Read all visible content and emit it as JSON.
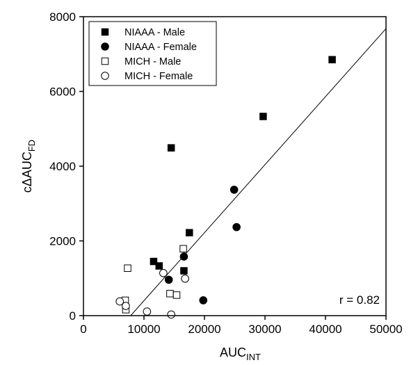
{
  "chart_data": {
    "type": "scatter",
    "xlabel": "AUC",
    "xlabel_sub": "INT",
    "ylabel": "cΔAUC",
    "ylabel_sub": "FD",
    "xlim": [
      0,
      50000
    ],
    "ylim": [
      0,
      8000
    ],
    "xticks": [
      0,
      10000,
      20000,
      30000,
      40000,
      50000
    ],
    "yticks": [
      0,
      2000,
      4000,
      6000,
      8000
    ],
    "legend_position": "top-left",
    "annotation": "r = 0.82",
    "series": [
      {
        "name": "NIAAA - Male",
        "marker": "filled-square",
        "points": [
          {
            "x": 11600,
            "y": 1450
          },
          {
            "x": 12500,
            "y": 1330
          },
          {
            "x": 14500,
            "y": 4490
          },
          {
            "x": 16600,
            "y": 1200
          },
          {
            "x": 17500,
            "y": 2220
          },
          {
            "x": 29700,
            "y": 5330
          },
          {
            "x": 41100,
            "y": 6850
          }
        ]
      },
      {
        "name": "NIAAA - Female",
        "marker": "filled-circle",
        "points": [
          {
            "x": 14100,
            "y": 960
          },
          {
            "x": 16600,
            "y": 1580
          },
          {
            "x": 19800,
            "y": 410
          },
          {
            "x": 24900,
            "y": 3370
          },
          {
            "x": 25300,
            "y": 2370
          }
        ]
      },
      {
        "name": "MICH - Male",
        "marker": "open-square",
        "points": [
          {
            "x": 6900,
            "y": 410
          },
          {
            "x": 7000,
            "y": 160
          },
          {
            "x": 7300,
            "y": 1270
          },
          {
            "x": 14300,
            "y": 590
          },
          {
            "x": 15400,
            "y": 550
          },
          {
            "x": 16500,
            "y": 1790
          }
        ]
      },
      {
        "name": "MICH - Female",
        "marker": "open-circle",
        "points": [
          {
            "x": 6000,
            "y": 380
          },
          {
            "x": 7000,
            "y": 260
          },
          {
            "x": 10500,
            "y": 110
          },
          {
            "x": 13200,
            "y": 1140
          },
          {
            "x": 14500,
            "y": 30
          },
          {
            "x": 16800,
            "y": 990
          }
        ]
      }
    ],
    "fit_line": {
      "x": [
        7800,
        50000
      ],
      "y": [
        0,
        7680
      ]
    }
  }
}
